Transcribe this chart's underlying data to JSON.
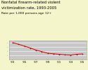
{
  "title_line1": "Nonfatal firearm-related violent",
  "title_line2": "victimization rate, 1993-2005",
  "subtitle": "Rate per 1,000 persons age 12+",
  "x_labels": [
    "'93",
    "'95",
    "'97",
    "'99",
    "'01",
    "'03",
    "'05"
  ],
  "years": [
    1993,
    1994,
    1995,
    1996,
    1997,
    1998,
    1999,
    2000,
    2001,
    2002,
    2003,
    2004,
    2005
  ],
  "values": [
    16.0,
    14.5,
    12.8,
    11.0,
    9.0,
    7.5,
    6.0,
    5.5,
    5.0,
    4.5,
    4.2,
    5.0,
    5.3
  ],
  "line_color": "#cc0000",
  "marker_color": "#cc0000",
  "plot_bg": "#c8c8c8",
  "outer_bg": "#f5f5cc",
  "title_color": "#000000",
  "title_fontsize": 3.8,
  "subtitle_fontsize": 3.2,
  "tick_fontsize": 3.0,
  "ylim": [
    0,
    18
  ],
  "yticks": [
    4,
    8,
    12,
    16
  ]
}
